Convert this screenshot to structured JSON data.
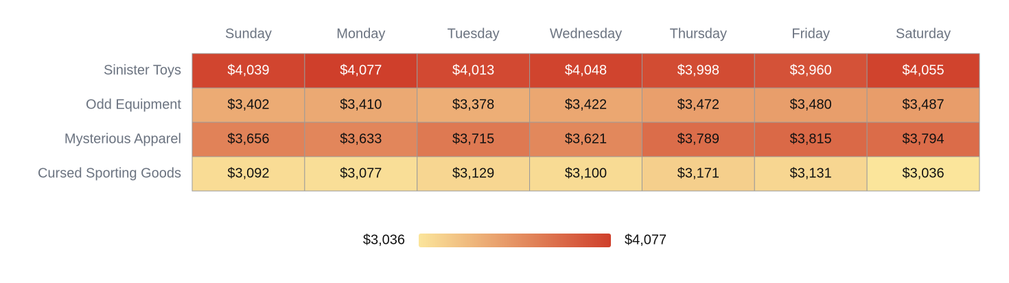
{
  "chart_data": {
    "type": "heatmap",
    "x_categories": [
      "Sunday",
      "Monday",
      "Tuesday",
      "Wednesday",
      "Thursday",
      "Friday",
      "Saturday"
    ],
    "y_categories": [
      "Sinister Toys",
      "Odd Equipment",
      "Mysterious Apparel",
      "Cursed Sporting Goods"
    ],
    "values": [
      [
        4039,
        4077,
        4013,
        4048,
        3998,
        3960,
        4055
      ],
      [
        3402,
        3410,
        3378,
        3422,
        3472,
        3480,
        3487
      ],
      [
        3656,
        3633,
        3715,
        3621,
        3789,
        3815,
        3794
      ],
      [
        3092,
        3077,
        3129,
        3100,
        3171,
        3131,
        3036
      ]
    ],
    "value_labels": [
      [
        "$4,039",
        "$4,077",
        "$4,013",
        "$4,048",
        "$3,998",
        "$3,960",
        "$4,055"
      ],
      [
        "$3,402",
        "$3,410",
        "$3,378",
        "$3,422",
        "$3,472",
        "$3,480",
        "$3,487"
      ],
      [
        "$3,656",
        "$3,633",
        "$3,715",
        "$3,621",
        "$3,789",
        "$3,815",
        "$3,794"
      ],
      [
        "$3,092",
        "$3,077",
        "$3,129",
        "$3,100",
        "$3,171",
        "$3,131",
        "$3,036"
      ]
    ],
    "clim": [
      3036,
      4077
    ],
    "colors": [
      "#fbe59b",
      "#cf3f2b"
    ],
    "colorbar_ticks": [
      {
        "value": 3036,
        "label": "$3,036"
      },
      {
        "value": 4077,
        "label": "$4,077"
      }
    ]
  }
}
